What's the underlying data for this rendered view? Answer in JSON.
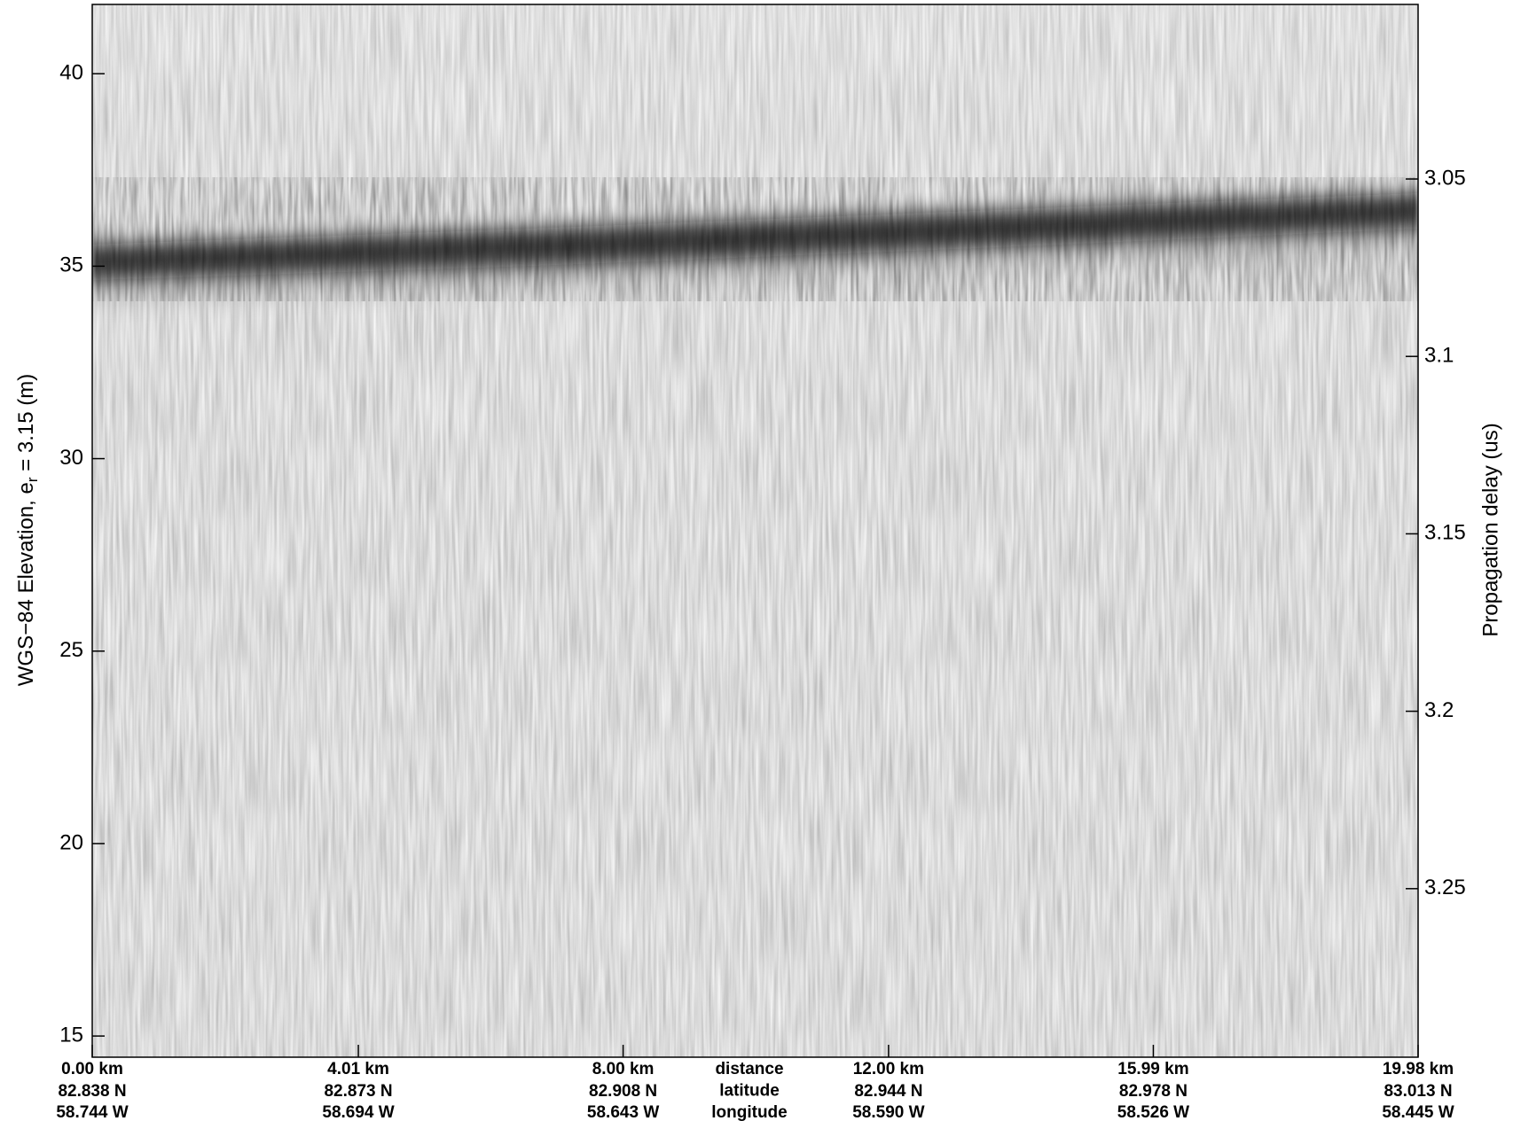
{
  "chart_data": {
    "type": "echogram",
    "ylabel": {
      "text": "WGS−84 Elevation, e",
      "subscript": "r",
      "suffix": " = 3.15 (m)"
    },
    "y2label": "Propagation delay (us)",
    "xlim": [
      0,
      19.98
    ],
    "xticks": [
      {
        "value": 0,
        "label": "0.00 km"
      },
      {
        "value": 4.01,
        "label": "4.01 km"
      },
      {
        "value": 8.0,
        "label": "8.00 km"
      },
      {
        "value": 12.0,
        "label": "12.00 km"
      },
      {
        "value": 15.99,
        "label": "15.99 km"
      },
      {
        "value": 19.98,
        "label": "19.98 km"
      }
    ],
    "latitude_labels": [
      "82.838 N",
      "82.873 N",
      "82.908 N",
      "82.944 N",
      "82.978 N",
      "83.013 N"
    ],
    "longitude_labels": [
      "58.744 W",
      "58.694 W",
      "58.643 W",
      "58.590 W",
      "58.526 W",
      "58.445 W"
    ],
    "row_titles": [
      "distance",
      "latitude",
      "longitude"
    ],
    "ylim": [
      14.45,
      41.8
    ],
    "yticks": [
      15,
      20,
      25,
      30,
      35,
      40
    ],
    "y2lim": [
      3.0008,
      3.2975
    ],
    "y2ticks": [
      3.05,
      3.1,
      3.15,
      3.2,
      3.25
    ]
  }
}
